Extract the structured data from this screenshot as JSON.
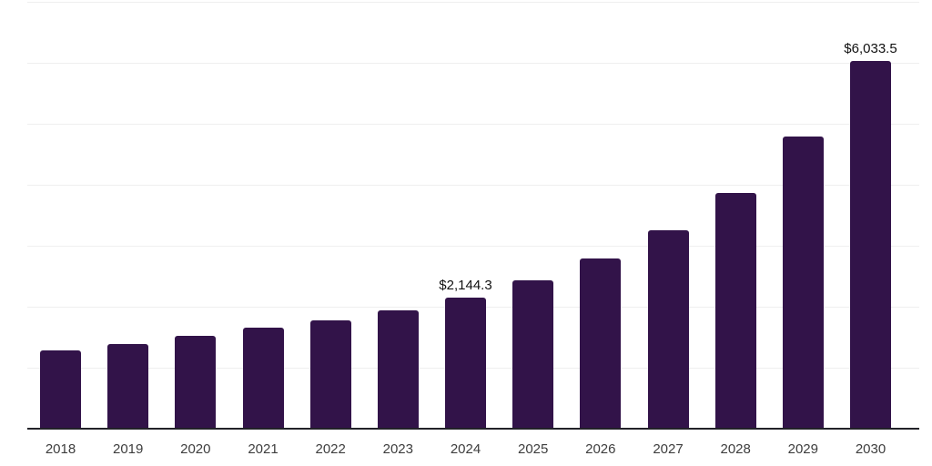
{
  "chart_data": {
    "type": "bar",
    "title": "",
    "categories": [
      "2018",
      "2019",
      "2020",
      "2021",
      "2022",
      "2023",
      "2024",
      "2025",
      "2026",
      "2027",
      "2028",
      "2029",
      "2030"
    ],
    "values": [
      1284,
      1388,
      1522,
      1657,
      1776,
      1940,
      2144.3,
      2433,
      2791,
      3254,
      3866,
      4791,
      6033.5
    ],
    "data_labels": [
      "",
      "",
      "",
      "",
      "",
      "",
      "$2,144.3",
      "",
      "",
      "",
      "",
      "",
      "$6,033.5"
    ],
    "ylim": [
      0,
      7000
    ],
    "gridline_step": 1000,
    "grid": "horizontal-only",
    "legend_position": "none",
    "xlabel": "",
    "ylabel": "",
    "colors": {
      "bar": "#321349",
      "axis_line": "#222228",
      "gridline": "#efefef",
      "tick_label": "#3d3d3d",
      "data_label": "#111111",
      "background": "#ffffff"
    }
  }
}
